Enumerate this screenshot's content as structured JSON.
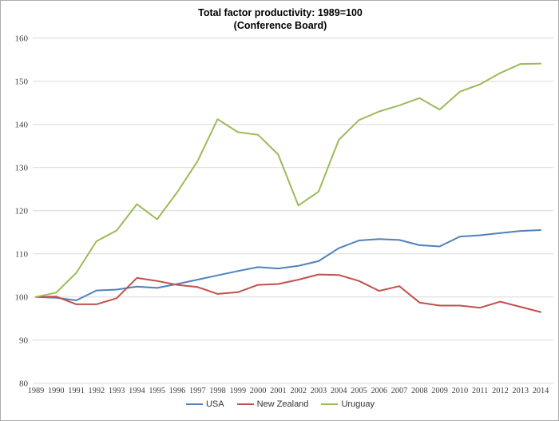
{
  "chart": {
    "title_line1": "Total factor productivity: 1989=100",
    "title_line2": "(Conference Board)"
  },
  "chart_data": {
    "type": "line",
    "title": "Total factor productivity: 1989=100 (Conference Board)",
    "categories": [
      1989,
      1990,
      1991,
      1992,
      1993,
      1994,
      1995,
      1996,
      1997,
      1998,
      1999,
      2000,
      2001,
      2002,
      2003,
      2004,
      2005,
      2006,
      2007,
      2008,
      2009,
      2010,
      2011,
      2012,
      2013,
      2014
    ],
    "series": [
      {
        "name": "USA",
        "color": "#4F81BD",
        "values": [
          100,
          99.8,
          99.2,
          101.5,
          101.7,
          102.4,
          102.1,
          103.0,
          104.0,
          105.0,
          106.0,
          106.9,
          106.6,
          107.2,
          108.3,
          111.3,
          113.1,
          113.4,
          113.2,
          112.0,
          111.7,
          114.0,
          114.3,
          114.8,
          115.3,
          115.5
        ]
      },
      {
        "name": "New Zealand",
        "color": "#C0504D",
        "values": [
          100,
          100.1,
          98.3,
          98.3,
          99.7,
          104.4,
          103.7,
          102.8,
          102.3,
          100.7,
          101.1,
          102.8,
          103.0,
          104.0,
          105.2,
          105.1,
          103.7,
          101.4,
          102.5,
          98.7,
          98.0,
          98.0,
          97.5,
          98.9,
          97.7,
          96.5
        ]
      },
      {
        "name": "Uruguay",
        "color": "#9BBB59",
        "values": [
          100,
          101.0,
          105.6,
          112.9,
          115.4,
          121.5,
          118.0,
          124.3,
          131.4,
          141.2,
          138.2,
          137.6,
          133.0,
          121.2,
          124.4,
          136.4,
          141.0,
          143.0,
          144.4,
          146.1,
          143.4,
          147.6,
          149.3,
          151.9,
          154.0,
          154.1
        ]
      }
    ],
    "ylim": [
      80,
      160
    ],
    "ytick_step": 10,
    "grid": "horizontal",
    "gridline_color": "#D9D9D9",
    "tick_text_color": "#3d3d3d",
    "legend_position": "bottom"
  }
}
